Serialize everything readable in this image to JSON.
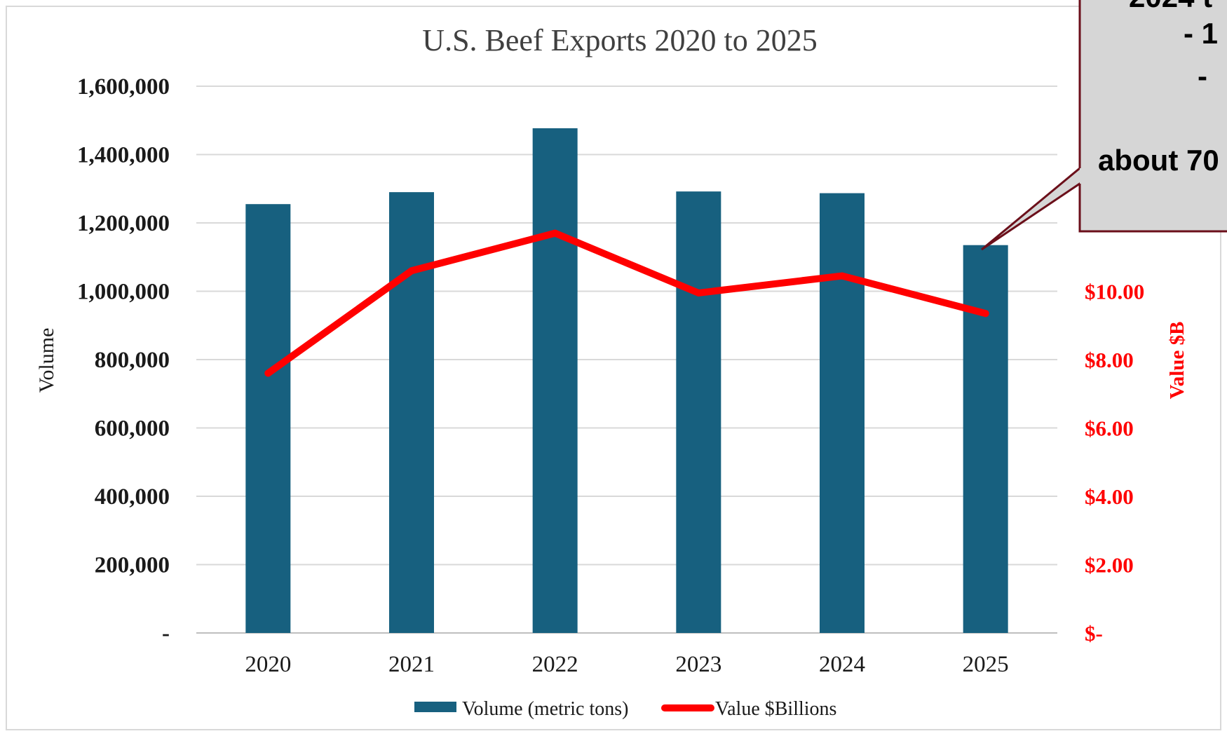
{
  "chart_data": {
    "type": "bar",
    "title": "U.S. Beef Exports 2020 to 2025",
    "categories": [
      "2020",
      "2021",
      "2022",
      "2023",
      "2024",
      "2025"
    ],
    "series": [
      {
        "name": "Volume (metric tons)",
        "type": "bar",
        "axis": "left",
        "color": "#17607f",
        "values": [
          1255000,
          1290000,
          1477000,
          1292000,
          1287000,
          1135000
        ]
      },
      {
        "name": "Value $Billions",
        "type": "line",
        "axis": "right",
        "color": "#ff0000",
        "values": [
          7.6,
          10.6,
          11.7,
          9.95,
          10.45,
          9.35
        ]
      }
    ],
    "ylabel": "Volume",
    "ylim": [
      0,
      1600000
    ],
    "yticks": [
      "-",
      "200,000",
      "400,000",
      "600,000",
      "800,000",
      "1,000,000",
      "1,200,000",
      "1,400,000",
      "1,600,000"
    ],
    "y2label": "Value $B",
    "y2ticks": [
      "$-",
      "$2.00",
      "$4.00",
      "$6.00",
      "$8.00",
      "$10.00"
    ],
    "grid": true,
    "legend": "bottom"
  },
  "callout": {
    "lines": [
      "2024 t",
      "-  1",
      "-",
      "about 70"
    ]
  }
}
